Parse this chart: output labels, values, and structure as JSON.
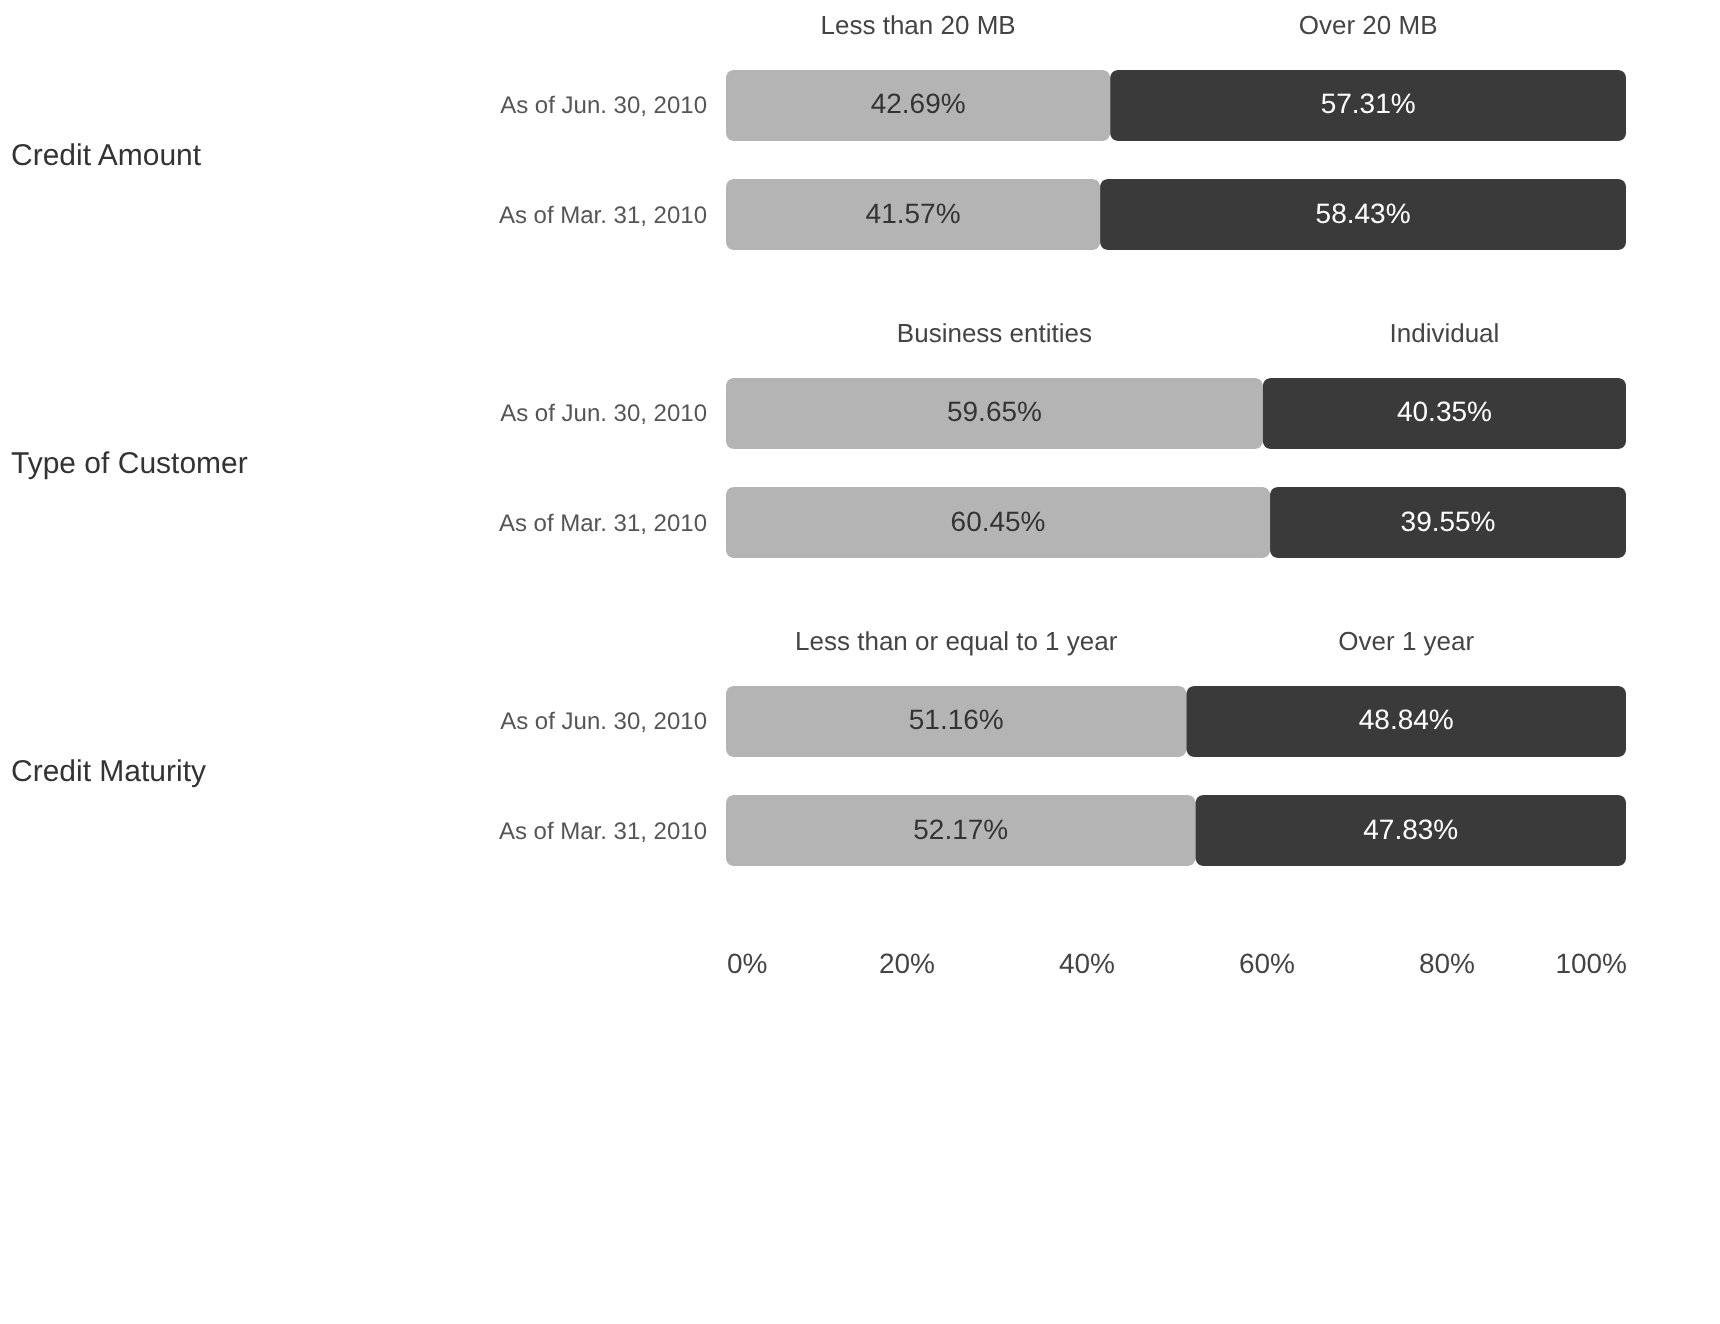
{
  "chart_data": [
    {
      "type": "bar",
      "orientation": "horizontal",
      "stacked": true,
      "ylabel": "Credit Amount",
      "categories": [
        "As of Jun. 30, 2010",
        "As of Mar. 31, 2010"
      ],
      "series": [
        {
          "name": "Less than 20 MB",
          "color": "#b4b4b4",
          "values": [
            42.69,
            41.57
          ],
          "value_labels": [
            "42.69%",
            "41.57%"
          ]
        },
        {
          "name": "Over 20 MB",
          "color": "#3a3a3a",
          "values": [
            57.31,
            58.43
          ],
          "value_labels": [
            "57.31%",
            "58.43%"
          ]
        }
      ],
      "xlim": [
        0,
        100
      ],
      "tick_labels": "y",
      "grid": false
    },
    {
      "type": "bar",
      "orientation": "horizontal",
      "stacked": true,
      "ylabel": "Type of Customer",
      "categories": [
        "As of Jun. 30, 2010",
        "As of Mar. 31, 2010"
      ],
      "series": [
        {
          "name": "Business entities",
          "color": "#b4b4b4",
          "values": [
            59.65,
            60.45
          ],
          "value_labels": [
            "59.65%",
            "60.45%"
          ]
        },
        {
          "name": "Individual",
          "color": "#3a3a3a",
          "values": [
            40.35,
            39.55
          ],
          "value_labels": [
            "40.35%",
            "39.55%"
          ]
        }
      ],
      "xlim": [
        0,
        100
      ],
      "tick_labels": "y",
      "grid": false
    },
    {
      "type": "bar",
      "orientation": "horizontal",
      "stacked": true,
      "ylabel": "Credit Maturity",
      "categories": [
        "As of Jun. 30, 2010",
        "As of Mar. 31, 2010"
      ],
      "series": [
        {
          "name": "Less than or equal to 1 year",
          "color": "#b4b4b4",
          "values": [
            51.16,
            52.17
          ],
          "value_labels": [
            "51.16%",
            "52.17%"
          ]
        },
        {
          "name": "Over 1 year",
          "color": "#3a3a3a",
          "values": [
            48.84,
            47.83
          ],
          "value_labels": [
            "48.84%",
            "47.83%"
          ]
        }
      ],
      "xlim": [
        0,
        100
      ],
      "xticks": [
        {
          "value": 0,
          "label": "0%"
        },
        {
          "value": 20,
          "label": "20%"
        },
        {
          "value": 40,
          "label": "40%"
        },
        {
          "value": 60,
          "label": "60%"
        },
        {
          "value": 80,
          "label": "80%"
        },
        {
          "value": 100,
          "label": "100%"
        }
      ],
      "grid": false
    }
  ]
}
